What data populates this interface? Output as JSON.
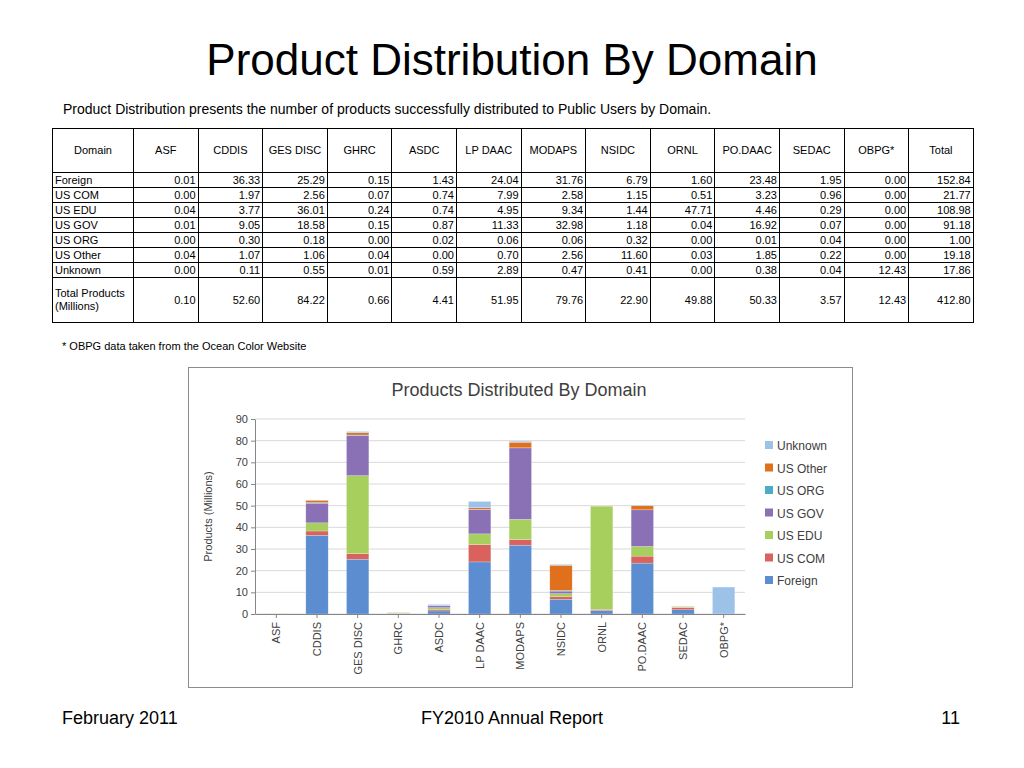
{
  "slide": {
    "title": "Product Distribution By Domain",
    "subtitle": "Product Distribution presents the number of products successfully distributed to Public Users by Domain.",
    "footnote": "* OBPG data taken from the Ocean Color Website",
    "footer_left": "February 2011",
    "footer_center": "FY2010 Annual Report",
    "footer_right": "11"
  },
  "table": {
    "header": [
      "Domain",
      "ASF",
      "CDDIS",
      "GES DISC",
      "GHRC",
      "ASDC",
      "LP DAAC",
      "MODAPS",
      "NSIDC",
      "ORNL",
      "PO.DAAC",
      "SEDAC",
      "OBPG*",
      "Total"
    ],
    "rows": [
      [
        "Foreign",
        "0.01",
        "36.33",
        "25.29",
        "0.15",
        "1.43",
        "24.04",
        "31.76",
        "6.79",
        "1.60",
        "23.48",
        "1.95",
        "0.00",
        "152.84"
      ],
      [
        "US COM",
        "0.00",
        "1.97",
        "2.56",
        "0.07",
        "0.74",
        "7.99",
        "2.58",
        "1.15",
        "0.51",
        "3.23",
        "0.96",
        "0.00",
        "21.77"
      ],
      [
        "US EDU",
        "0.04",
        "3.77",
        "36.01",
        "0.24",
        "0.74",
        "4.95",
        "9.34",
        "1.44",
        "47.71",
        "4.46",
        "0.29",
        "0.00",
        "108.98"
      ],
      [
        "US GOV",
        "0.01",
        "9.05",
        "18.58",
        "0.15",
        "0.87",
        "11.33",
        "32.98",
        "1.18",
        "0.04",
        "16.92",
        "0.07",
        "0.00",
        "91.18"
      ],
      [
        "US ORG",
        "0.00",
        "0.30",
        "0.18",
        "0.00",
        "0.02",
        "0.06",
        "0.06",
        "0.32",
        "0.00",
        "0.01",
        "0.04",
        "0.00",
        "1.00"
      ],
      [
        "US Other",
        "0.04",
        "1.07",
        "1.06",
        "0.04",
        "0.00",
        "0.70",
        "2.56",
        "11.60",
        "0.03",
        "1.85",
        "0.22",
        "0.00",
        "19.18"
      ],
      [
        "Unknown",
        "0.00",
        "0.11",
        "0.55",
        "0.01",
        "0.59",
        "2.89",
        "0.47",
        "0.41",
        "0.00",
        "0.38",
        "0.04",
        "12.43",
        "17.86"
      ],
      [
        "Total Products (Millions)",
        "0.10",
        "52.60",
        "84.22",
        "0.66",
        "4.41",
        "51.95",
        "79.76",
        "22.90",
        "49.88",
        "50.33",
        "3.57",
        "12.43",
        "412.80"
      ]
    ]
  },
  "chart_data": {
    "type": "bar",
    "title": "Products Distributed By Domain",
    "y_label": "Products (Millions)",
    "categories": [
      "ASF",
      "CDDIS",
      "GES DISC",
      "GHRC",
      "ASDC",
      "LP DAAC",
      "MODAPS",
      "NSIDC",
      "ORNL",
      "PO.DAAC",
      "SEDAC",
      "OBPG*"
    ],
    "series": [
      {
        "name": "Foreign",
        "color": "#5b8dd0",
        "values": [
          0.01,
          36.33,
          25.29,
          0.15,
          1.43,
          24.04,
          31.76,
          6.79,
          1.6,
          23.48,
          1.95,
          0.0
        ]
      },
      {
        "name": "US COM",
        "color": "#d9625f",
        "values": [
          0.0,
          1.97,
          2.56,
          0.07,
          0.74,
          7.99,
          2.58,
          1.15,
          0.51,
          3.23,
          0.96,
          0.0
        ]
      },
      {
        "name": "US EDU",
        "color": "#a6cf5e",
        "values": [
          0.04,
          3.77,
          36.01,
          0.24,
          0.74,
          4.95,
          9.34,
          1.44,
          47.71,
          4.46,
          0.29,
          0.0
        ]
      },
      {
        "name": "US GOV",
        "color": "#8a70b5",
        "values": [
          0.01,
          9.05,
          18.58,
          0.15,
          0.87,
          11.33,
          32.98,
          1.18,
          0.04,
          16.92,
          0.07,
          0.0
        ]
      },
      {
        "name": "US ORG",
        "color": "#4bacc6",
        "values": [
          0.0,
          0.3,
          0.18,
          0.0,
          0.02,
          0.06,
          0.06,
          0.32,
          0.0,
          0.01,
          0.04,
          0.0
        ]
      },
      {
        "name": "US Other",
        "color": "#e0701c",
        "values": [
          0.04,
          1.07,
          1.06,
          0.04,
          0.0,
          0.7,
          2.56,
          11.6,
          0.03,
          1.85,
          0.22,
          0.0
        ]
      },
      {
        "name": "Unknown",
        "color": "#9cc2e8",
        "values": [
          0.0,
          0.11,
          0.55,
          0.01,
          0.59,
          2.89,
          0.47,
          0.41,
          0.0,
          0.38,
          0.04,
          12.43
        ]
      }
    ],
    "ylim": [
      0,
      90
    ],
    "yticks": [
      0,
      10,
      20,
      30,
      40,
      50,
      60,
      70,
      80,
      90
    ],
    "grid": true,
    "legend": "right",
    "stacked": true
  }
}
